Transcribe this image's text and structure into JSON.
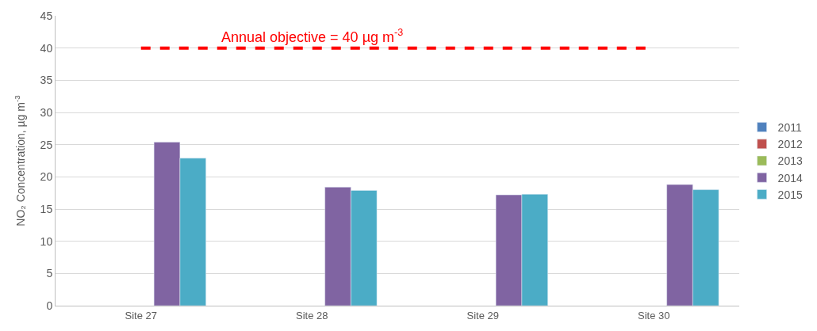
{
  "chart_data": {
    "type": "bar",
    "ylabel": "NO₂ Concentration, µg m$^{-3}$",
    "categories": [
      "Site 27",
      "Site 28",
      "Site 29",
      "Site 30"
    ],
    "series": [
      {
        "name": "2011",
        "color": "#4f81bd",
        "values": [
          null,
          null,
          null,
          null
        ]
      },
      {
        "name": "2012",
        "color": "#c0504d",
        "values": [
          null,
          null,
          null,
          null
        ]
      },
      {
        "name": "2013",
        "color": "#9bbb59",
        "values": [
          null,
          null,
          null,
          null
        ]
      },
      {
        "name": "2014",
        "color": "#8064a2",
        "values": [
          25.4,
          18.4,
          17.2,
          18.8
        ]
      },
      {
        "name": "2015",
        "color": "#4bacc6",
        "values": [
          22.9,
          17.9,
          17.3,
          18.0
        ]
      }
    ],
    "ylim": [
      0,
      45
    ],
    "yticks": [
      0,
      5,
      10,
      15,
      20,
      25,
      30,
      35,
      40,
      45
    ],
    "ref_lines": [
      {
        "axis": "y",
        "value": 40,
        "label": "Annual objective = 40 µg m$^{-3}$",
        "color": "#ff0000",
        "line_style": "dashed"
      }
    ],
    "grid": "y",
    "legend": "right"
  }
}
